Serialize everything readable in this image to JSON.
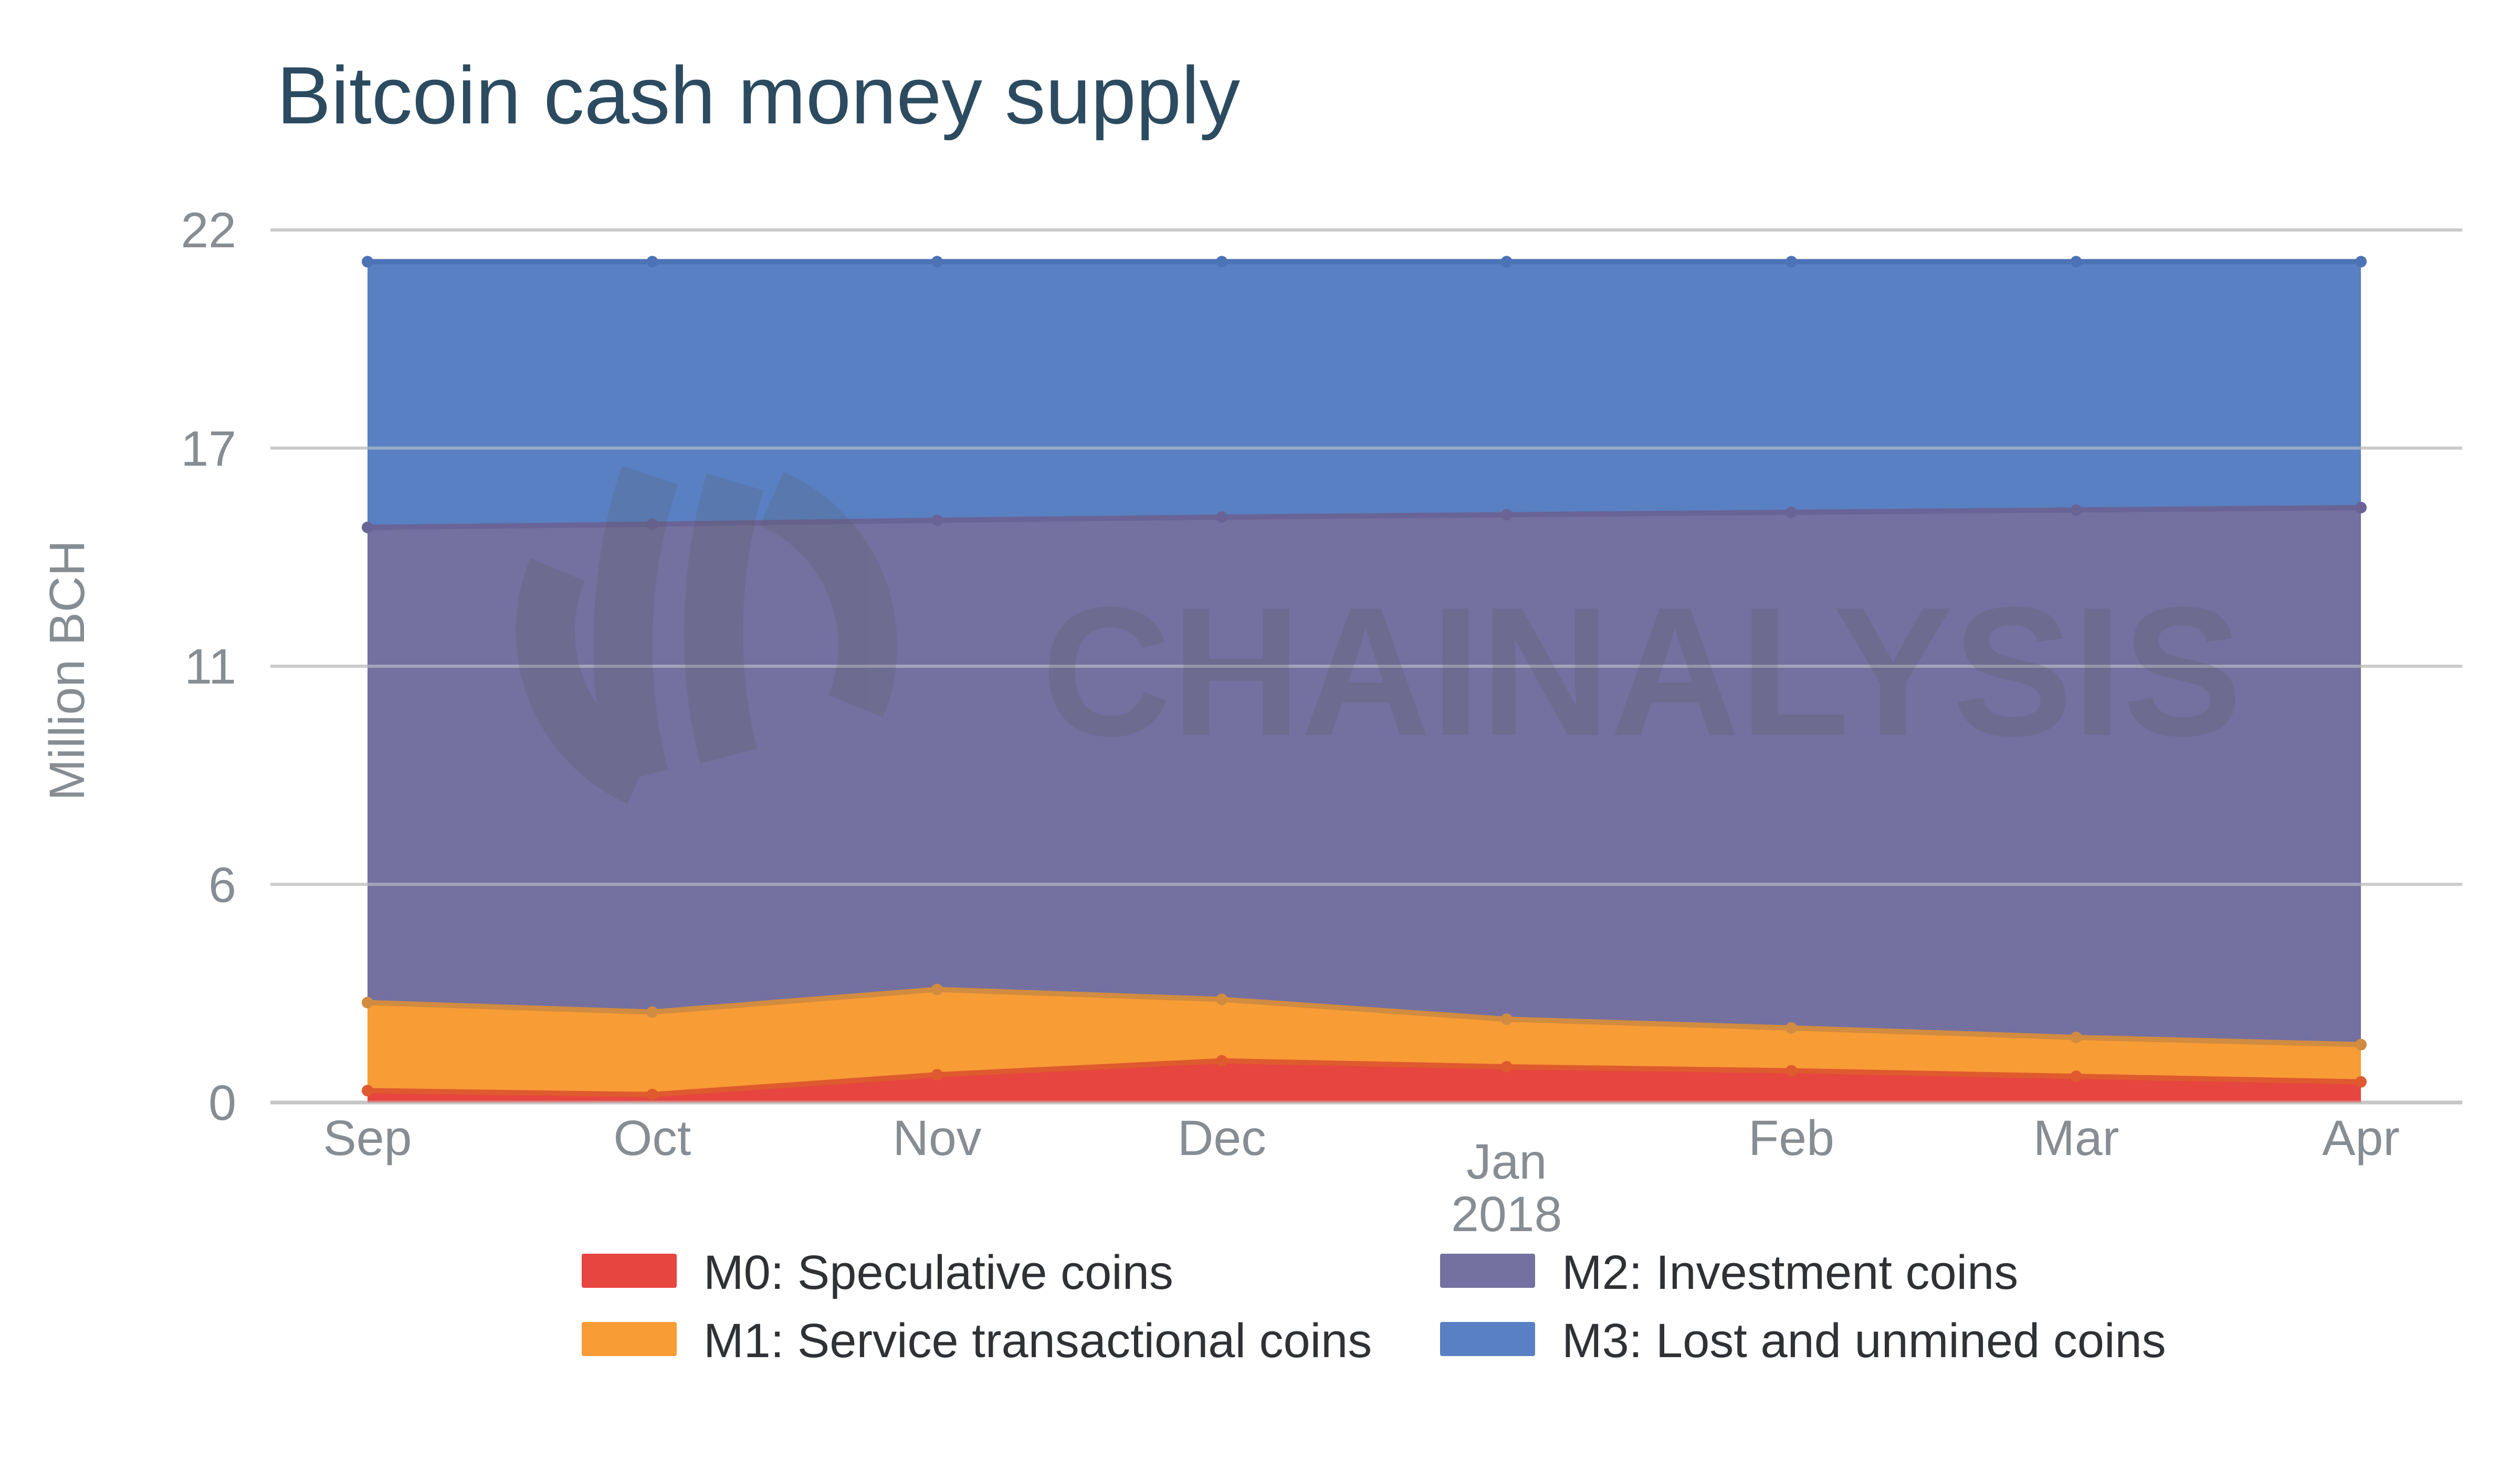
{
  "title": "Bitcoin cash money supply",
  "watermark": {
    "text": "CHAINALYSIS"
  },
  "y_axis": {
    "title": "Million BCH",
    "ticks": [
      {
        "value": 0,
        "label": "0"
      },
      {
        "value": 5.5,
        "label": "6"
      },
      {
        "value": 11,
        "label": "11"
      },
      {
        "value": 16.5,
        "label": "17"
      },
      {
        "value": 22,
        "label": "22"
      }
    ]
  },
  "x_axis": {
    "months": [
      "Sep",
      "Oct",
      "Nov",
      "Dec",
      "Jan",
      "Feb",
      "Mar",
      "Apr"
    ],
    "year": "2018",
    "year_under_month": "Jan"
  },
  "colors": {
    "title_text": "#2C4B60",
    "axis_text": "#868D93",
    "legend_text": "#2F3134",
    "gridline": "#CBCBCB",
    "axis_line": "#C6C6C6",
    "watermark": "#58595B"
  },
  "chart_data": {
    "type": "area",
    "stacked": true,
    "title": "Bitcoin cash money supply",
    "xlabel": "",
    "ylabel": "Million BCH",
    "ylim": [
      0,
      22
    ],
    "grid": true,
    "legend_position": "bottom",
    "categories": [
      "Sep",
      "Oct",
      "Nov",
      "Dec",
      "Jan 2018",
      "Feb",
      "Mar",
      "Apr"
    ],
    "series": [
      {
        "name": "M0: Speculative coins",
        "values": [
          0.3,
          0.2,
          0.7,
          1.05,
          0.9,
          0.8,
          0.66,
          0.52
        ],
        "fill": "#E74540",
        "line": "#DF5A2E"
      },
      {
        "name": "M1: Service transactional coins",
        "values": [
          2.22,
          2.08,
          2.15,
          1.55,
          1.2,
          1.08,
          0.98,
          0.94
        ],
        "fill": "#F89C35",
        "line": "#D18C41"
      },
      {
        "name": "M2: Investment coins",
        "values": [
          11.98,
          12.3,
          11.83,
          12.16,
          12.72,
          13.0,
          13.3,
          13.54
        ],
        "fill": "#74709F",
        "line": "#6A6496"
      },
      {
        "name": "M3: Lost and unmined coins",
        "values": [
          6.7,
          6.62,
          6.52,
          6.44,
          6.38,
          6.32,
          6.26,
          6.2
        ],
        "fill": "#5880C2",
        "line": "#4C73B5"
      }
    ],
    "stack_totals": [
      21.2,
      21.2,
      21.2,
      21.2,
      21.2,
      21.2,
      21.2,
      21.2
    ]
  }
}
